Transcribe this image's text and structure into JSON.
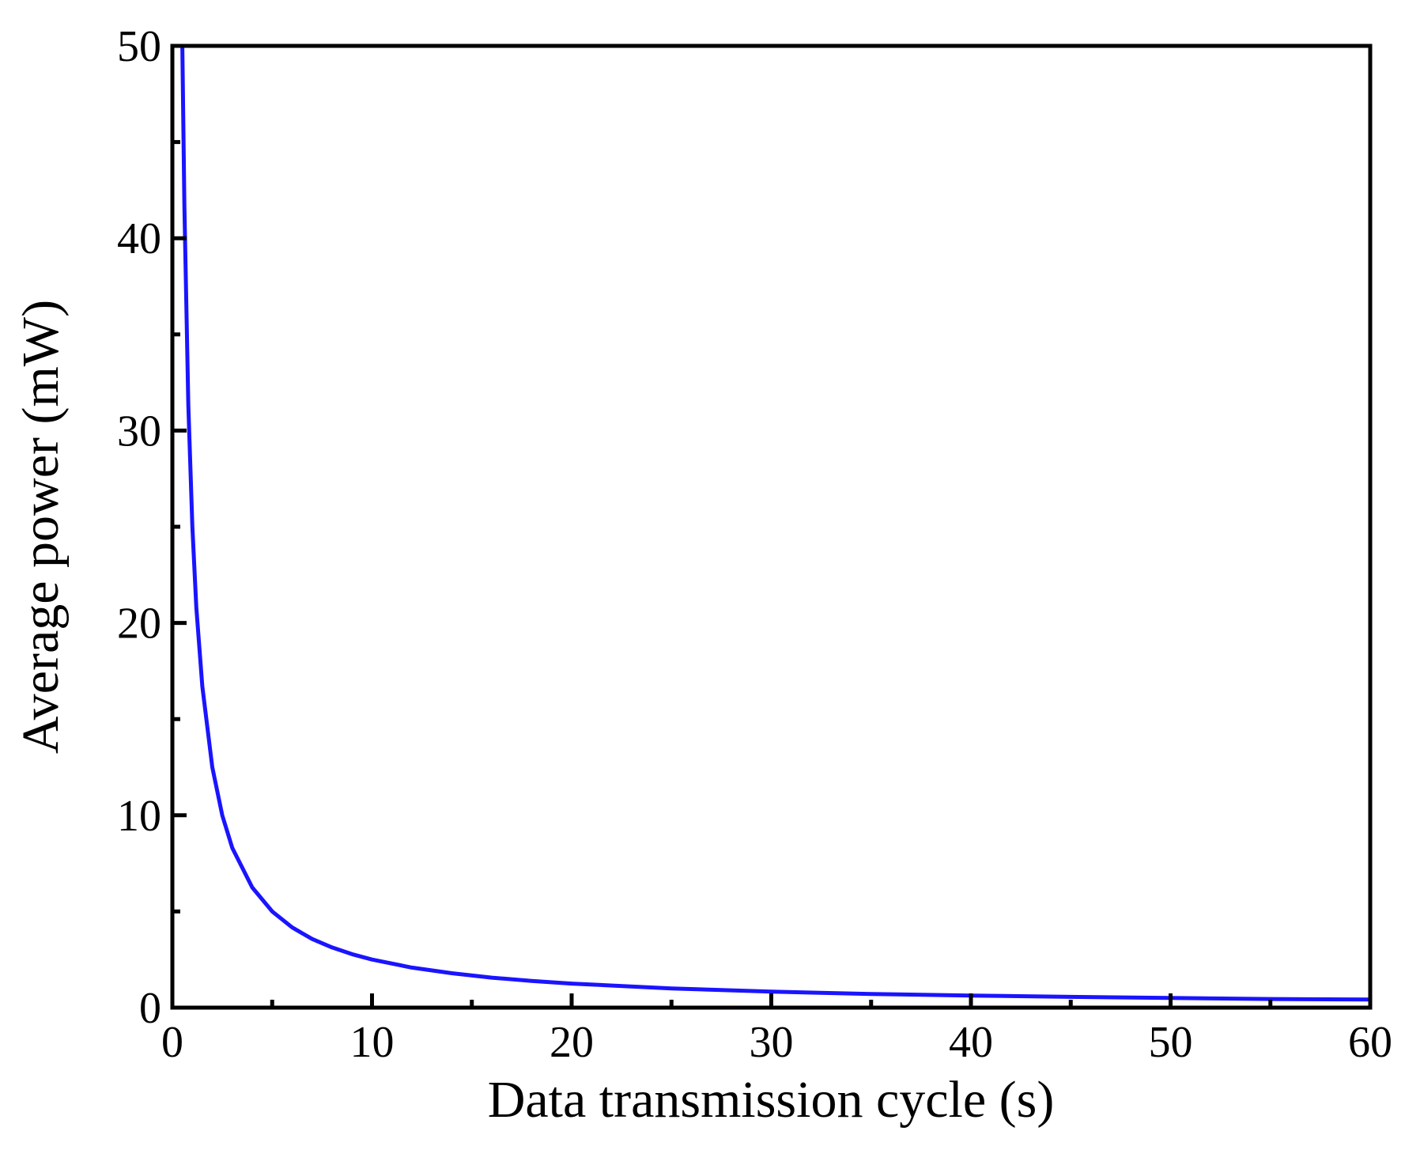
{
  "chart_data": {
    "type": "line",
    "title": "",
    "xlabel": "Data transmission cycle (s)",
    "ylabel": "Average power (mW)",
    "xlim": [
      0,
      60
    ],
    "ylim": [
      0,
      50
    ],
    "x_major_ticks": [
      0,
      10,
      20,
      30,
      40,
      50,
      60
    ],
    "x_minor_ticks": [
      5,
      15,
      25,
      35,
      45,
      55
    ],
    "y_major_ticks": [
      0,
      10,
      20,
      30,
      40,
      50
    ],
    "y_minor_ticks": [
      5,
      15,
      25,
      35,
      45
    ],
    "x_tick_labels": [
      "0",
      "10",
      "20",
      "30",
      "40",
      "50",
      "60"
    ],
    "y_tick_labels": [
      "0",
      "10",
      "20",
      "30",
      "40",
      "50"
    ],
    "grid": false,
    "legend": "none",
    "series": [
      {
        "name": "Average power",
        "color": "#1a14ff",
        "x": [
          0.5,
          0.6,
          0.8,
          1.0,
          1.2,
          1.5,
          2.0,
          2.5,
          3.0,
          4.0,
          5.0,
          6.0,
          7.0,
          8.0,
          9.0,
          10,
          12,
          14,
          16,
          18,
          20,
          25,
          30,
          35,
          40,
          45,
          50,
          55,
          60
        ],
        "y": [
          50.0,
          41.7,
          31.3,
          25.0,
          20.8,
          16.7,
          12.5,
          10.0,
          8.3,
          6.25,
          5.0,
          4.17,
          3.57,
          3.13,
          2.78,
          2.5,
          2.08,
          1.79,
          1.56,
          1.39,
          1.25,
          1.0,
          0.83,
          0.71,
          0.63,
          0.56,
          0.5,
          0.45,
          0.42
        ]
      }
    ]
  }
}
